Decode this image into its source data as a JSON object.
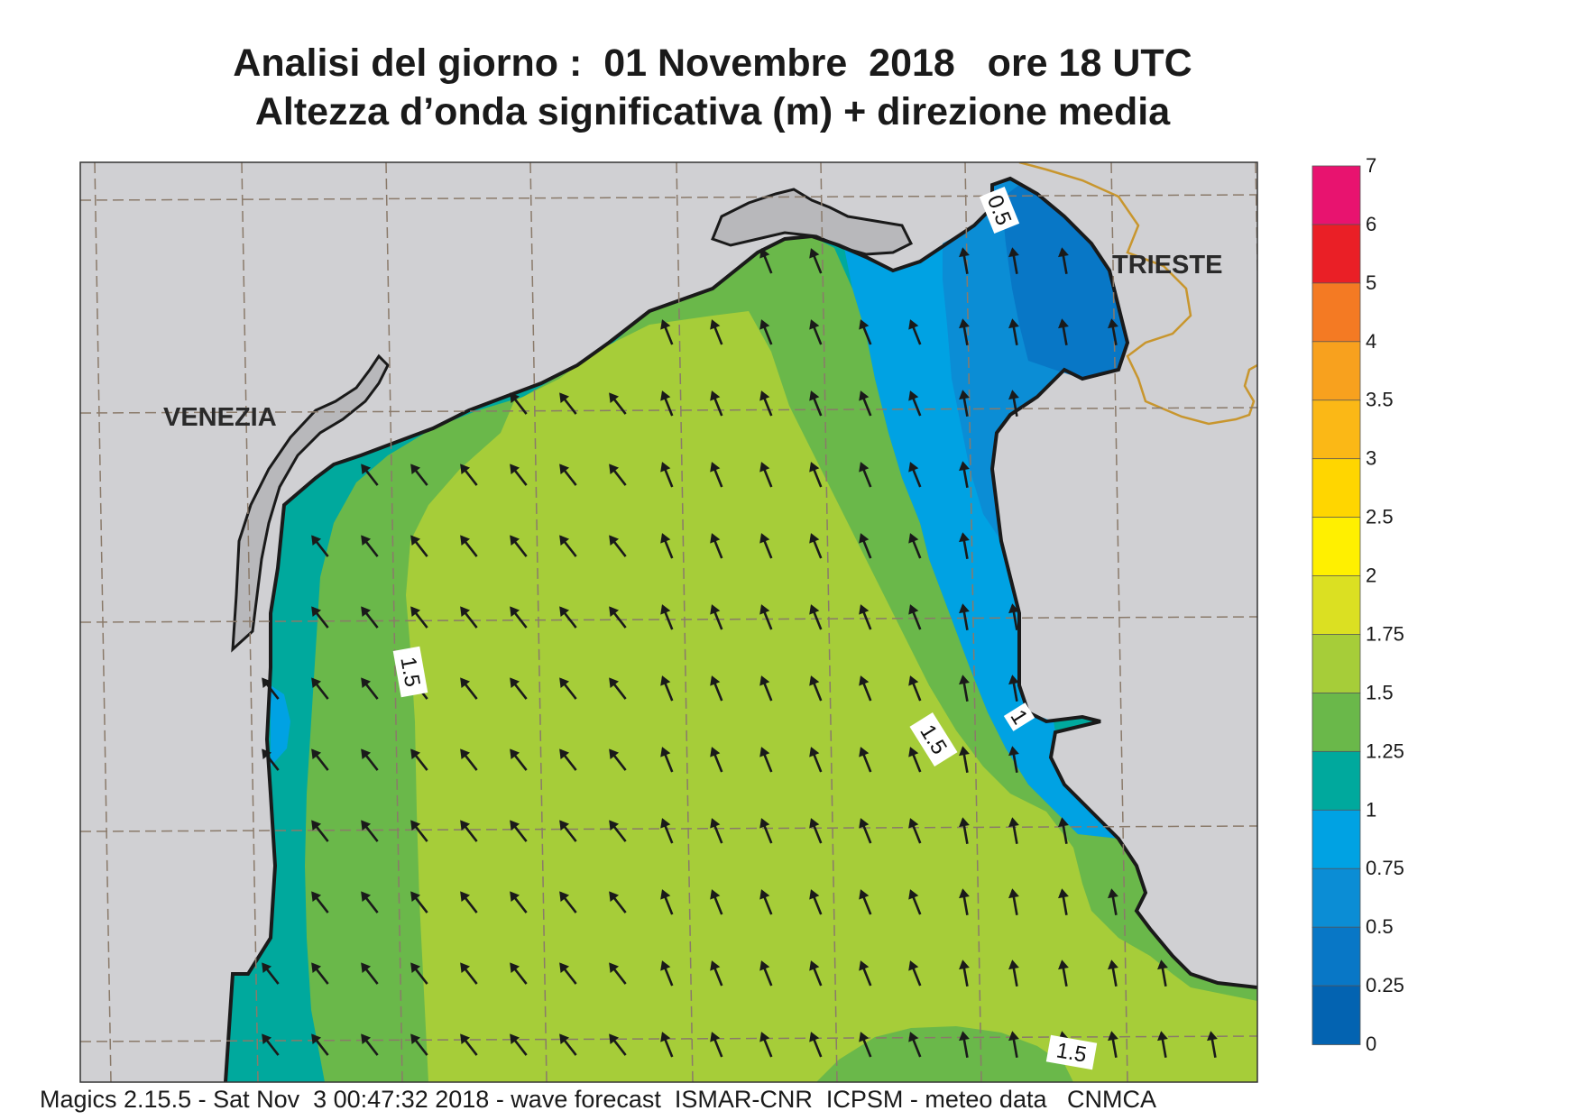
{
  "header": {
    "title_line1": "Analisi del giorno :  01 Novembre  2018   ore 18 UTC",
    "title_line2": "Altezza d’onda significativa (m) + direzione media"
  },
  "map": {
    "cities": [
      {
        "name": "VENEZIA"
      },
      {
        "name": "TRIESTE"
      }
    ],
    "contour_labels": [
      "0.5",
      "1.5",
      "1.5",
      "1",
      "1.5"
    ],
    "colors": {
      "land": "#d0d0d3",
      "lagoon": "#b8b8bb",
      "coast": "#1a1a1a",
      "border": "#c8962e",
      "grid": "#8a7a6a",
      "arrow": "#1a1a1a"
    },
    "wave_direction": "north-north-west"
  },
  "legend": {
    "labels": [
      "7",
      "6",
      "5",
      "4",
      "3.5",
      "3",
      "2.5",
      "2",
      "1.75",
      "1.5",
      "1.25",
      "1",
      "0.75",
      "0.5",
      "0.25",
      "0"
    ],
    "colors": [
      "#e8136f",
      "#ea1f26",
      "#f47a23",
      "#f8a11e",
      "#fbb816",
      "#ffd600",
      "#fff000",
      "#dbe022",
      "#a6cd39",
      "#6ab84a",
      "#00a99d",
      "#00a2e3",
      "#0b8dd5",
      "#0877c6",
      "#0363b1"
    ]
  },
  "footer": {
    "text": "Magics 2.15.5 - Sat Nov  3 00:47:32 2018 - wave forecast  ISMAR-CNR  ICPSM - meteo data   CNMCA"
  }
}
